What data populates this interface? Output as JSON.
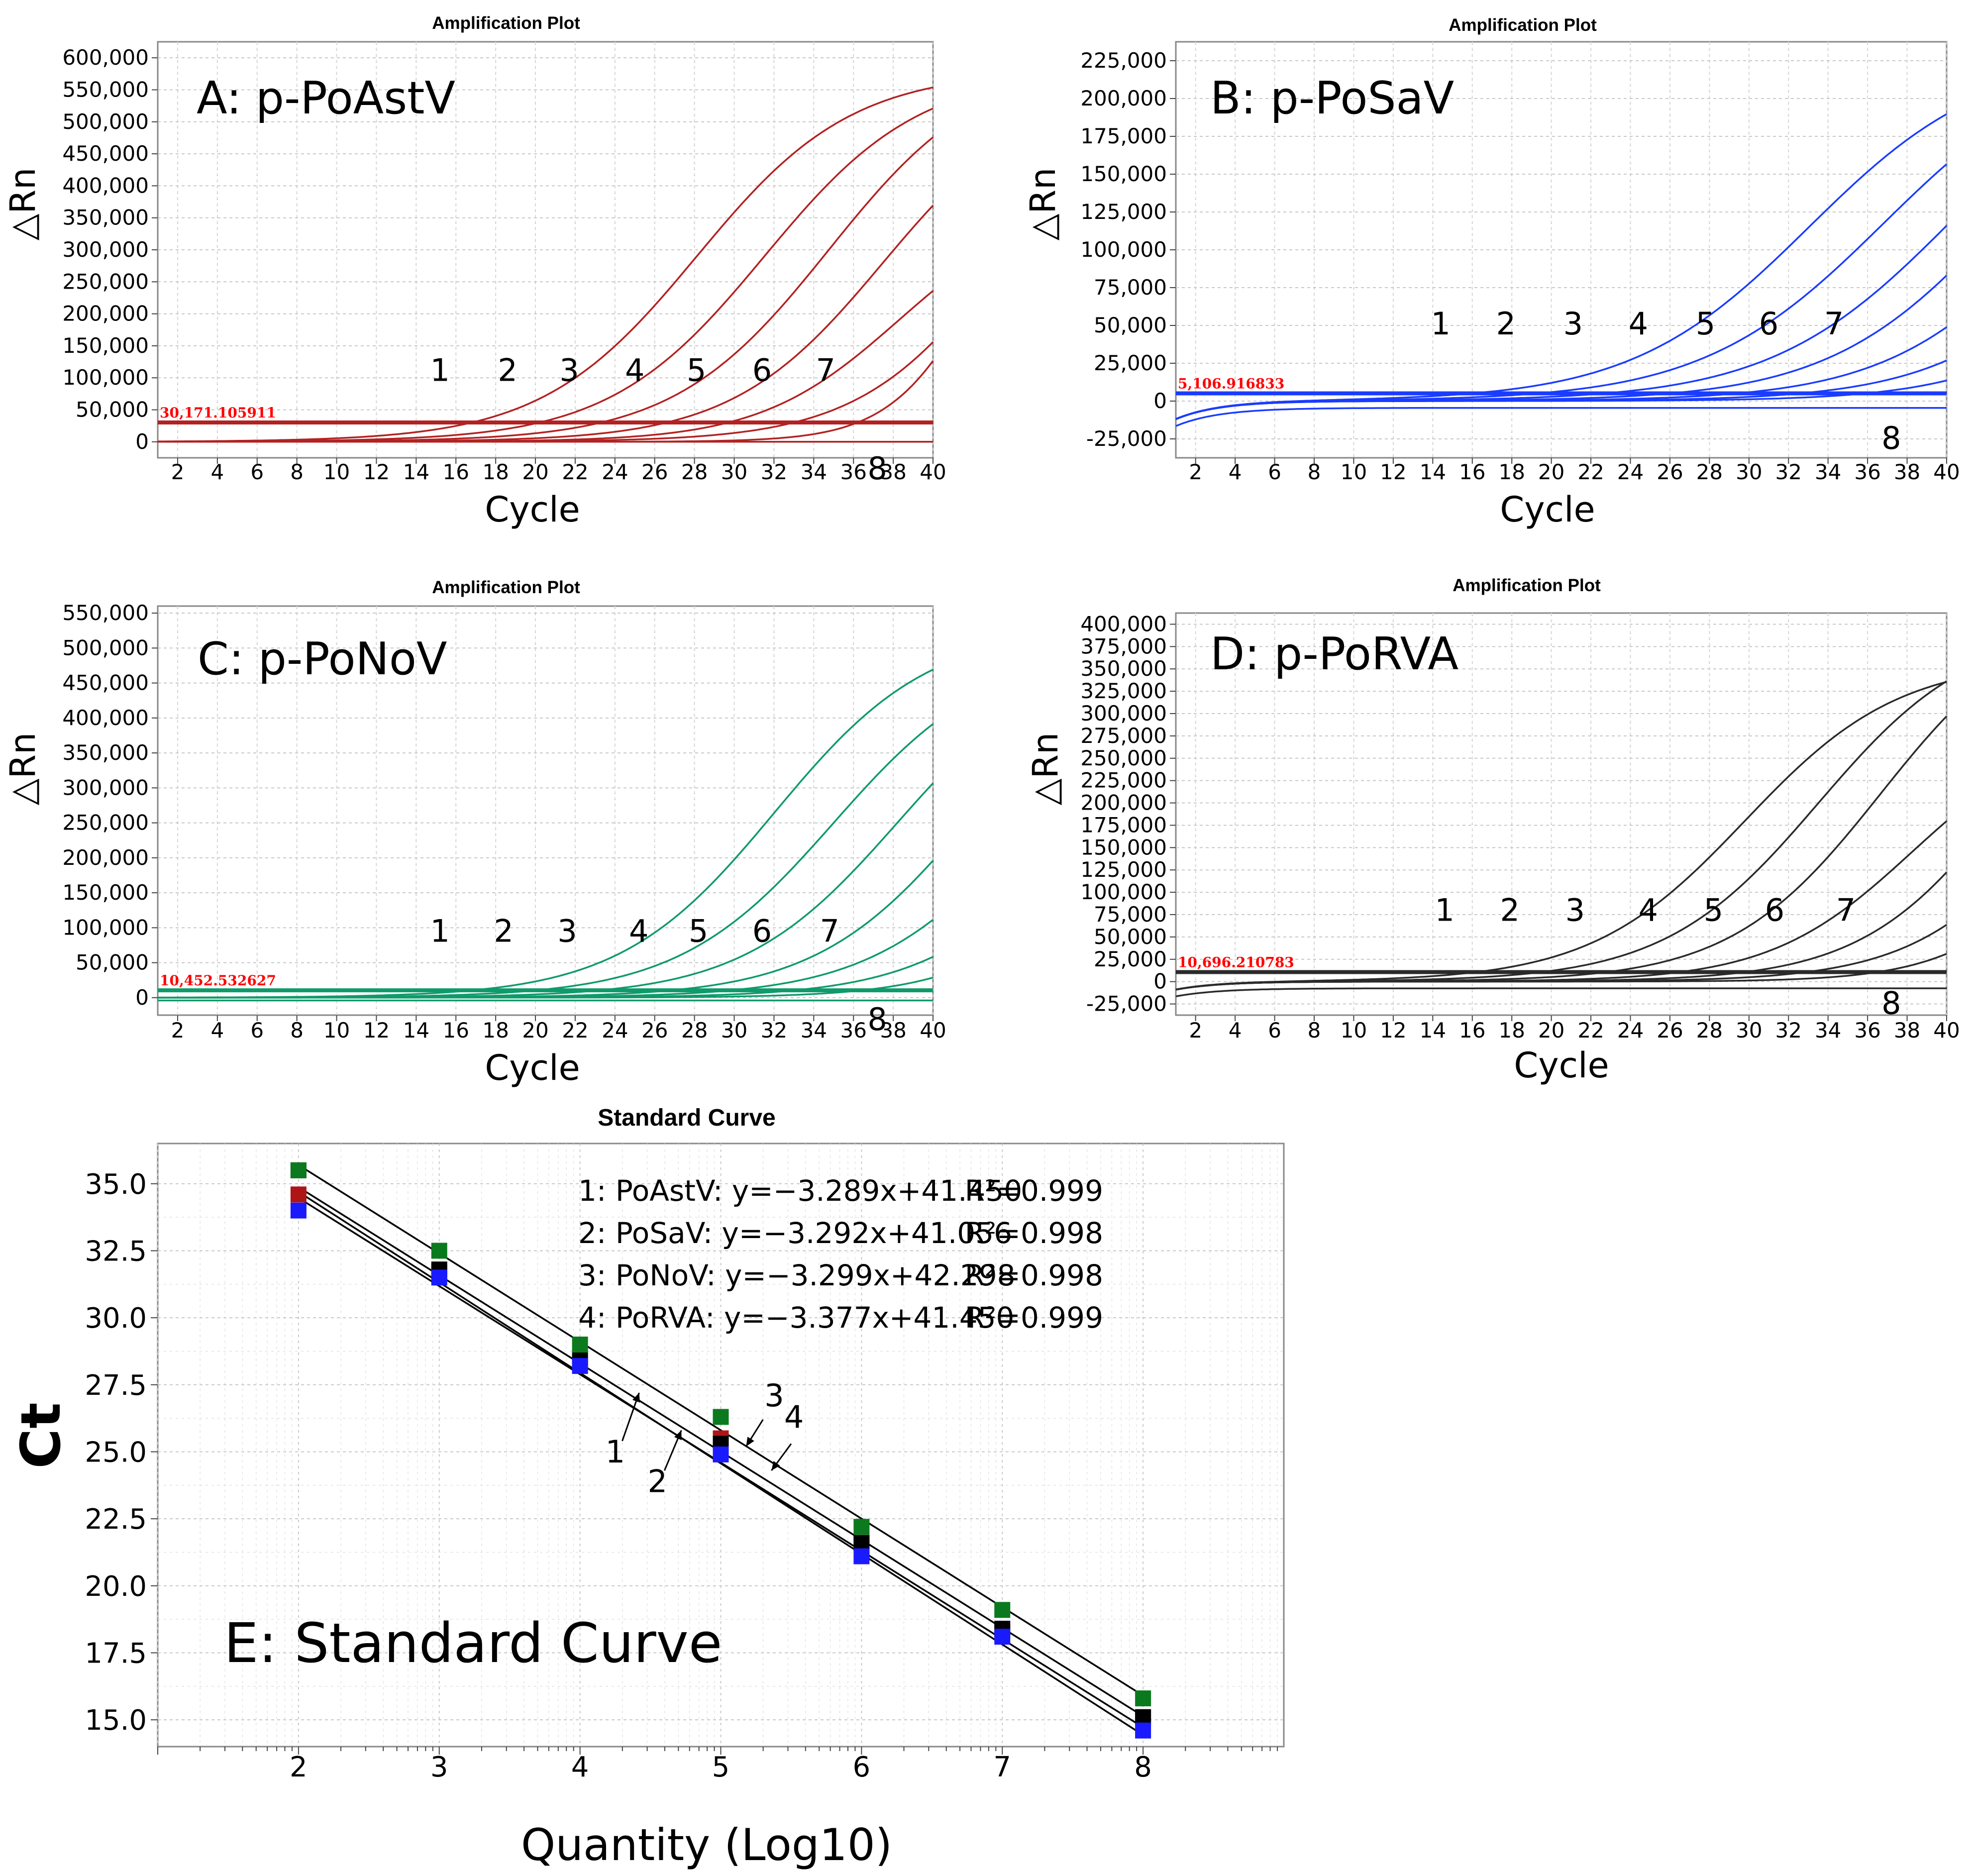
{
  "chart_data": [
    {
      "type": "line",
      "panel_label": "A: p-PoAstV",
      "title": "Amplification Plot",
      "xlabel": "Cycle",
      "ylabel": "△Rn",
      "color": "#b22222",
      "xlim": [
        1,
        40
      ],
      "ylim": [
        -25000,
        625000
      ],
      "xticks": [
        "2",
        "4",
        "6",
        "8",
        "10",
        "12",
        "14",
        "16",
        "18",
        "20",
        "22",
        "24",
        "26",
        "28",
        "30",
        "32",
        "34",
        "36",
        "38",
        "40"
      ],
      "yticks": [
        "0",
        "50,000",
        "100,000",
        "150,000",
        "200,000",
        "250,000",
        "300,000",
        "350,000",
        "400,000",
        "450,000",
        "500,000",
        "550,000",
        "600,000"
      ],
      "threshold": {
        "value": 30171.105911,
        "label": "30,171.105911"
      },
      "curve_labels": [
        "1",
        "2",
        "3",
        "4",
        "5",
        "6",
        "7",
        "8"
      ],
      "series": [
        {
          "name": "1",
          "ct": 16.8,
          "plateau": 580000,
          "slope": 3.9
        },
        {
          "name": "2",
          "ct": 20.2,
          "plateau": 580000,
          "slope": 3.9
        },
        {
          "name": "3",
          "ct": 23.3,
          "plateau": 600000,
          "slope": 3.9
        },
        {
          "name": "4",
          "ct": 26.6,
          "plateau": 560000,
          "slope": 3.8
        },
        {
          "name": "5",
          "ct": 29.7,
          "plateau": 380000,
          "slope": 3.5
        },
        {
          "name": "6",
          "ct": 33.0,
          "plateau": 600000,
          "slope": 3.7
        },
        {
          "name": "7",
          "ct": 36.2,
          "plateau": 520000,
          "slope": 2.3
        },
        {
          "name": "8",
          "ct": null,
          "plateau": 0,
          "slope": 1,
          "flat": 0
        }
      ]
    },
    {
      "type": "line",
      "panel_label": "B: p-PoSaV",
      "title": "Amplification Plot",
      "xlabel": "Cycle",
      "ylabel": "△Rn",
      "color": "#1a3cff",
      "xlim": [
        1,
        40
      ],
      "ylim": [
        -37500,
        237500
      ],
      "xticks": [
        "2",
        "4",
        "6",
        "8",
        "10",
        "12",
        "14",
        "16",
        "18",
        "20",
        "22",
        "24",
        "26",
        "28",
        "30",
        "32",
        "34",
        "36",
        "38",
        "40"
      ],
      "yticks": [
        "-25,000",
        "0",
        "25,000",
        "50,000",
        "75,000",
        "100,000",
        "125,000",
        "150,000",
        "175,000",
        "200,000",
        "225,000"
      ],
      "threshold": {
        "value": 5106.916833,
        "label": "5,106.916833"
      },
      "curve_labels": [
        "1",
        "2",
        "3",
        "4",
        "5",
        "6",
        "7",
        "8"
      ],
      "series": [
        {
          "name": "1",
          "ct": 16.0,
          "plateau": 230000,
          "slope": 4.5
        },
        {
          "name": "2",
          "ct": 19.3,
          "plateau": 235000,
          "slope": 4.6
        },
        {
          "name": "3",
          "ct": 22.7,
          "plateau": 240000,
          "slope": 4.6
        },
        {
          "name": "4",
          "ct": 26.0,
          "plateau": 245000,
          "slope": 4.4
        },
        {
          "name": "5",
          "ct": 29.4,
          "plateau": 240000,
          "slope": 4.3
        },
        {
          "name": "6",
          "ct": 32.6,
          "plateau": 230000,
          "slope": 4.2
        },
        {
          "name": "7",
          "ct": 35.9,
          "plateau": 210000,
          "slope": 4.0
        },
        {
          "name": "8",
          "ct": null,
          "plateau": 0,
          "slope": 1,
          "flat": -4500
        }
      ]
    },
    {
      "type": "line",
      "panel_label": "C: p-PoNoV",
      "title": "Amplification Plot",
      "xlabel": "Cycle",
      "ylabel": "△Rn",
      "color": "#0f9a6a",
      "xlim": [
        1,
        40
      ],
      "ylim": [
        -25000,
        560000
      ],
      "xticks": [
        "2",
        "4",
        "6",
        "8",
        "10",
        "12",
        "14",
        "16",
        "18",
        "20",
        "22",
        "24",
        "26",
        "28",
        "30",
        "32",
        "34",
        "36",
        "38",
        "40"
      ],
      "yticks": [
        "0",
        "50,000",
        "100,000",
        "150,000",
        "200,000",
        "250,000",
        "300,000",
        "350,000",
        "400,000",
        "450,000",
        "500,000",
        "550,000"
      ],
      "threshold": {
        "value": 10452.532627,
        "label": "10,452.532627"
      },
      "curve_labels": [
        "1",
        "2",
        "3",
        "4",
        "5",
        "6",
        "7",
        "8"
      ],
      "series": [
        {
          "name": "1",
          "ct": 16.8,
          "plateau": 530000,
          "slope": 3.9
        },
        {
          "name": "2",
          "ct": 20.0,
          "plateau": 500000,
          "slope": 3.9
        },
        {
          "name": "3",
          "ct": 23.2,
          "plateau": 500000,
          "slope": 3.9
        },
        {
          "name": "4",
          "ct": 26.8,
          "plateau": 520000,
          "slope": 3.9
        },
        {
          "name": "5",
          "ct": 29.8,
          "plateau": 470000,
          "slope": 3.9
        },
        {
          "name": "6",
          "ct": 33.0,
          "plateau": 430000,
          "slope": 3.8
        },
        {
          "name": "7",
          "ct": 36.4,
          "plateau": 400000,
          "slope": 3.4
        },
        {
          "name": "8",
          "ct": null,
          "plateau": 0,
          "slope": 1,
          "flat": -4000
        }
      ]
    },
    {
      "type": "line",
      "panel_label": "D: p-PoRVA",
      "title": "Amplification Plot",
      "xlabel": "Cycle",
      "ylabel": "△Rn",
      "color": "#2a2a2a",
      "xlim": [
        1,
        40
      ],
      "ylim": [
        -37500,
        412500
      ],
      "xticks": [
        "2",
        "4",
        "6",
        "8",
        "10",
        "12",
        "14",
        "16",
        "18",
        "20",
        "22",
        "24",
        "26",
        "28",
        "30",
        "32",
        "34",
        "36",
        "38",
        "40"
      ],
      "yticks": [
        "-25,000",
        "0",
        "25,000",
        "50,000",
        "75,000",
        "100,000",
        "125,000",
        "150,000",
        "175,000",
        "200,000",
        "225,000",
        "250,000",
        "275,000",
        "300,000",
        "325,000",
        "350,000",
        "375,000",
        "400,000"
      ],
      "threshold": {
        "value": 10696.210783,
        "label": "10,696.210783"
      },
      "curve_labels": [
        "1",
        "2",
        "3",
        "4",
        "5",
        "6",
        "7",
        "8"
      ],
      "series": [
        {
          "name": "1",
          "ct": 16.2,
          "plateau": 360000,
          "slope": 3.9
        },
        {
          "name": "2",
          "ct": 19.5,
          "plateau": 400000,
          "slope": 3.9
        },
        {
          "name": "3",
          "ct": 22.8,
          "plateau": 420000,
          "slope": 3.8
        },
        {
          "name": "4",
          "ct": 26.5,
          "plateau": 290000,
          "slope": 3.6
        },
        {
          "name": "5",
          "ct": 29.8,
          "plateau": 420000,
          "slope": 3.7
        },
        {
          "name": "6",
          "ct": 32.9,
          "plateau": 430000,
          "slope": 3.7
        },
        {
          "name": "7",
          "ct": 36.5,
          "plateau": 230000,
          "slope": 3.0
        },
        {
          "name": "8",
          "ct": null,
          "plateau": 0,
          "slope": 1,
          "flat": -7500
        }
      ]
    },
    {
      "type": "scatter",
      "panel_label": "E: Standard Curve",
      "title": "Standard Curve",
      "xlabel": "Quantity (Log10)",
      "ylabel": "Ct",
      "xlim": [
        1,
        9
      ],
      "ylim": [
        14,
        36.5
      ],
      "xticks": [
        "2",
        "3",
        "4",
        "5",
        "6",
        "7",
        "8"
      ],
      "yticks": [
        "15.0",
        "17.5",
        "20.0",
        "22.5",
        "25.0",
        "27.5",
        "30.0",
        "32.5",
        "35.0"
      ],
      "equations": [
        {
          "label": "1: PoAstV: y=−3.289x+41.450",
          "r2": "R²=0.999"
        },
        {
          "label": "2: PoSaV: y=−3.292x+41.056",
          "r2": "R²=0.998"
        },
        {
          "label": "3: PoNoV: y=−3.299x+42.298",
          "r2": "R²=0.998"
        },
        {
          "label": "4: PoRVA: y=−3.377x+41.450",
          "r2": "R²=0.999"
        }
      ],
      "line_labels": [
        "1",
        "2",
        "3",
        "4"
      ],
      "x": [
        2,
        3,
        4,
        5,
        6,
        7,
        8
      ],
      "series": [
        {
          "name": "PoAstV",
          "color": "#b01515",
          "slope": -3.289,
          "intercept": 41.45,
          "y": [
            34.6,
            31.7,
            28.3,
            25.5,
            21.6,
            18.3,
            15.1
          ]
        },
        {
          "name": "PoSaV",
          "color": "#1a1aff",
          "slope": -3.292,
          "intercept": 41.056,
          "y": [
            34.0,
            31.5,
            28.2,
            24.9,
            21.1,
            18.1,
            14.6
          ]
        },
        {
          "name": "PoNoV",
          "color": "#0b7a1e",
          "slope": -3.299,
          "intercept": 42.298,
          "y": [
            35.5,
            32.5,
            29.0,
            26.3,
            22.2,
            19.1,
            15.8
          ]
        },
        {
          "name": "PoRVA",
          "color": "#000000",
          "slope": -3.377,
          "intercept": 41.45,
          "y": [
            35.5,
            31.8,
            28.5,
            25.3,
            21.6,
            18.4,
            15.1
          ]
        }
      ]
    }
  ]
}
